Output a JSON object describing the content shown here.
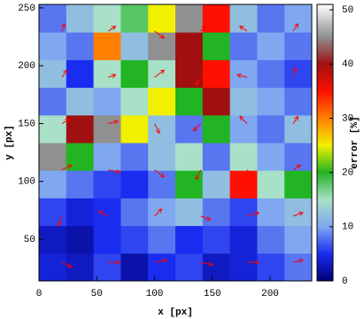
{
  "chart_data": {
    "type": "heatmap",
    "xlabel": "x [px]",
    "ylabel": "y [px]",
    "colorbar_label": "error [%]",
    "xlim": [
      0,
      236
    ],
    "ylim": [
      14,
      253
    ],
    "xticks": [
      0,
      50,
      100,
      150,
      200
    ],
    "yticks": [
      50,
      100,
      150,
      200,
      250
    ],
    "zlim": [
      0,
      51
    ],
    "zticks": [
      0,
      10,
      20,
      30,
      40,
      50
    ],
    "colormap": [
      {
        "value": 0,
        "color": "#00007a"
      },
      {
        "value": 5,
        "color": "#1a2cf0"
      },
      {
        "value": 10,
        "color": "#7fa8f0"
      },
      {
        "value": 15,
        "color": "#a8e0c8"
      },
      {
        "value": 20,
        "color": "#22b422"
      },
      {
        "value": 25,
        "color": "#f0f000"
      },
      {
        "value": 30,
        "color": "#ff8000"
      },
      {
        "value": 35,
        "color": "#ff1000"
      },
      {
        "value": 40,
        "color": "#a01010"
      },
      {
        "value": 45,
        "color": "#909090"
      },
      {
        "value": 51,
        "color": "#ffffff"
      }
    ],
    "z": [
      [
        4,
        3,
        6,
        2,
        5,
        6,
        3,
        4,
        6,
        8
      ],
      [
        3,
        2,
        5,
        6,
        8,
        5,
        6,
        4,
        8,
        10
      ],
      [
        6,
        4,
        5,
        8,
        10,
        12,
        8,
        6,
        10,
        12
      ],
      [
        10,
        8,
        6,
        5,
        8,
        20,
        12,
        35,
        15,
        20
      ],
      [
        45,
        20,
        10,
        8,
        12,
        15,
        8,
        15,
        10,
        8
      ],
      [
        15,
        40,
        45,
        25,
        12,
        8,
        20,
        10,
        8,
        12
      ],
      [
        8,
        12,
        10,
        15,
        25,
        20,
        40,
        12,
        10,
        8
      ],
      [
        12,
        5,
        15,
        20,
        15,
        40,
        35,
        10,
        8,
        6
      ],
      [
        10,
        8,
        30,
        12,
        45,
        40,
        20,
        8,
        10,
        8
      ],
      [
        8,
        12,
        15,
        18,
        25,
        45,
        35,
        12,
        8,
        10
      ]
    ],
    "vector_color": "#ff0000",
    "vectors": {
      "x": [
        20,
        60,
        100,
        140,
        180,
        220,
        20,
        60,
        100,
        140,
        180,
        220,
        20,
        60,
        100,
        140,
        180,
        220,
        20,
        60,
        100,
        140,
        180,
        220,
        20,
        60,
        100,
        140,
        180,
        220,
        20,
        60,
        100,
        140,
        180,
        220
      ],
      "y": [
        30,
        30,
        30,
        30,
        30,
        30,
        70,
        70,
        70,
        70,
        70,
        70,
        110,
        110,
        110,
        110,
        110,
        110,
        150,
        150,
        150,
        150,
        150,
        150,
        190,
        190,
        190,
        190,
        190,
        190,
        230,
        230,
        230,
        230,
        230,
        230
      ],
      "u": [
        8,
        10,
        10,
        10,
        10,
        8,
        -3,
        -8,
        6,
        8,
        10,
        8,
        8,
        10,
        8,
        -4,
        6,
        6,
        6,
        8,
        4,
        -6,
        -6,
        4,
        4,
        6,
        8,
        -4,
        -8,
        2,
        2,
        6,
        8,
        4,
        -6,
        4
      ],
      "v": [
        -4,
        0,
        2,
        -2,
        0,
        2,
        -8,
        4,
        6,
        -3,
        3,
        3,
        4,
        -2,
        -6,
        -8,
        -6,
        4,
        4,
        2,
        -8,
        -6,
        6,
        6,
        6,
        2,
        6,
        -6,
        2,
        8,
        6,
        4,
        -6,
        4,
        4,
        6
      ]
    }
  }
}
